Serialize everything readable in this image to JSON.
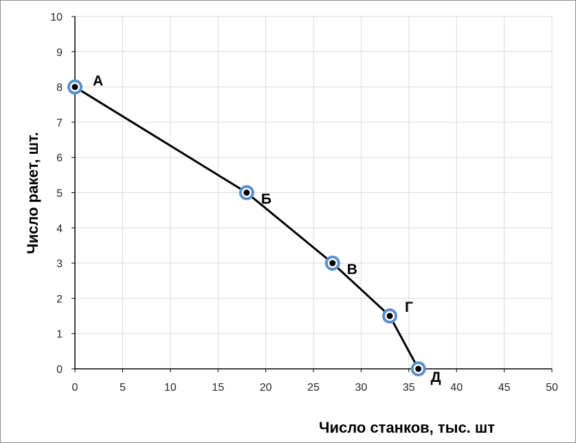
{
  "chart_data": {
    "type": "line",
    "xlabel": "Число станков, тыс. шт",
    "ylabel": "Число  ракет, шт.",
    "xlim": [
      0,
      50
    ],
    "ylim": [
      0,
      10
    ],
    "x_ticks": [
      0,
      5,
      10,
      15,
      20,
      25,
      30,
      35,
      40,
      45,
      50
    ],
    "y_ticks": [
      0,
      1,
      2,
      3,
      4,
      5,
      6,
      7,
      8,
      9,
      10
    ],
    "grid": true,
    "points": [
      {
        "label": "А",
        "x": 0,
        "y": 8
      },
      {
        "label": "Б",
        "x": 18,
        "y": 5
      },
      {
        "label": "В",
        "x": 27,
        "y": 3
      },
      {
        "label": "Г",
        "x": 33,
        "y": 1.5
      },
      {
        "label": "Д",
        "x": 36,
        "y": 0
      }
    ],
    "colors": {
      "line": "#000000",
      "marker_ring": "#5b8fc9",
      "marker_center": "#000000",
      "grid": "#d9d9d9"
    }
  }
}
